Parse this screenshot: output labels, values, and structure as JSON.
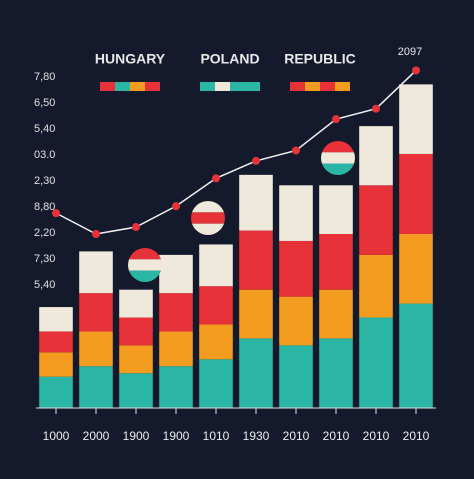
{
  "chart_data": {
    "type": "bar",
    "stacked": true,
    "annotation": "2097",
    "legend": [
      {
        "name": "HUNGARY",
        "colors": [
          "#e63238",
          "#2bb5a5",
          "#f39c1f",
          "#e63238"
        ]
      },
      {
        "name": "POLAND",
        "colors": [
          "#2bb5a5",
          "#efe9dc",
          "#2bb5a5",
          "#2bb5a5"
        ]
      },
      {
        "name": "REPUBLIC",
        "colors": [
          "#e63238",
          "#f39c1f",
          "#e63238",
          "#f39c1f"
        ]
      }
    ],
    "y_labels": [
      "7,80",
      "6,50",
      "5,40",
      "03.0",
      "2,30",
      "8,80",
      "2,20",
      "7,30",
      "5,40"
    ],
    "categories": [
      "1000",
      "2000",
      "1900",
      "1900",
      "1010",
      "1930",
      "2010",
      "2010",
      "2010",
      "2010"
    ],
    "ylim": [
      0,
      100
    ],
    "series": [
      {
        "color": "#2bb5a5",
        "values": [
          9,
          12,
          10,
          12,
          14,
          20,
          18,
          20,
          26,
          30
        ]
      },
      {
        "color": "#f39c1f",
        "values": [
          7,
          10,
          8,
          10,
          10,
          14,
          14,
          14,
          18,
          20
        ]
      },
      {
        "color": "#e63238",
        "values": [
          6,
          11,
          8,
          11,
          11,
          17,
          16,
          16,
          20,
          23
        ]
      },
      {
        "color": "#efe9dc",
        "values": [
          7,
          12,
          8,
          11,
          12,
          16,
          16,
          14,
          17,
          20
        ]
      }
    ],
    "line": {
      "color": "#f2f2f2",
      "marker_color": "#e63238",
      "values": [
        56,
        50,
        52,
        58,
        66,
        71,
        74,
        83,
        86,
        97
      ]
    }
  }
}
